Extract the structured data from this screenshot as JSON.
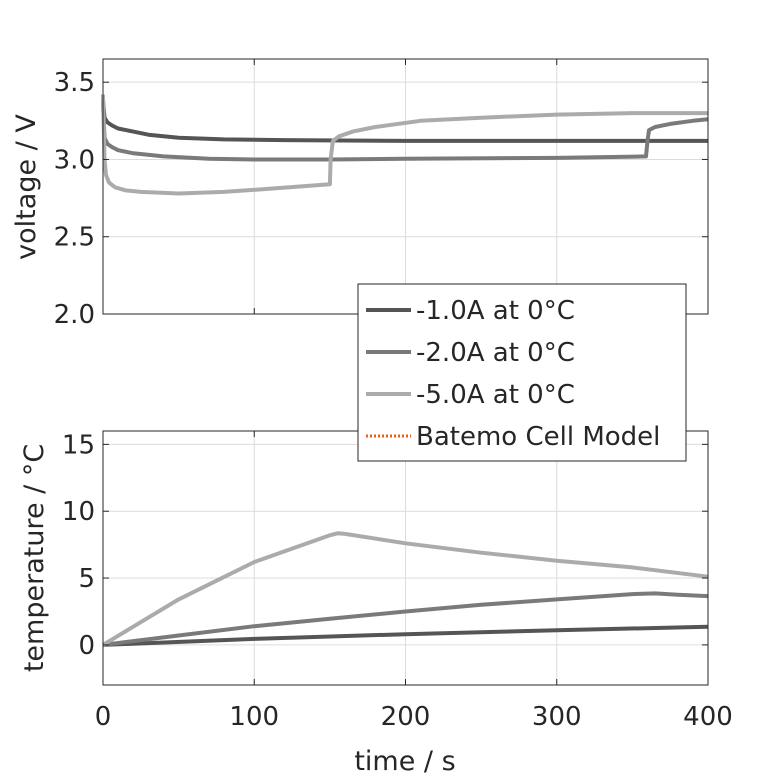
{
  "chart_data": [
    {
      "type": "line",
      "ylabel": "voltage / V",
      "xlim": [
        0,
        400
      ],
      "ylim": [
        2.0,
        3.65
      ],
      "yticks": [
        "2.0",
        "2.5",
        "3.0",
        "3.5"
      ],
      "ytick_values": [
        2.0,
        2.5,
        3.0,
        3.5
      ],
      "xticks_values": [
        0,
        100,
        200,
        300,
        400
      ],
      "grid": true,
      "series": [
        {
          "name": "-1.0A at 0°C",
          "color": "#555555",
          "x": [
            0,
            1,
            3,
            6,
            10,
            20,
            30,
            50,
            80,
            120,
            200,
            300,
            360,
            400
          ],
          "y": [
            3.38,
            3.27,
            3.24,
            3.22,
            3.2,
            3.18,
            3.16,
            3.14,
            3.13,
            3.125,
            3.12,
            3.12,
            3.12,
            3.12
          ]
        },
        {
          "name": "-2.0A at 0°C",
          "color": "#7a7a7a",
          "x": [
            0,
            1,
            3,
            6,
            10,
            20,
            40,
            70,
            100,
            150,
            200,
            300,
            359,
            360,
            361,
            365,
            375,
            390,
            400
          ],
          "y": [
            3.36,
            3.14,
            3.1,
            3.08,
            3.06,
            3.04,
            3.02,
            3.005,
            3.0,
            3.0,
            3.005,
            3.01,
            3.02,
            3.12,
            3.19,
            3.21,
            3.23,
            3.25,
            3.26
          ]
        },
        {
          "name": "-5.0A at 0°C",
          "color": "#ababab",
          "x": [
            0,
            1,
            2,
            4,
            8,
            15,
            25,
            50,
            80,
            110,
            150,
            150.5,
            152,
            156,
            165,
            180,
            210,
            250,
            300,
            350,
            400
          ],
          "y": [
            3.42,
            3.0,
            2.9,
            2.85,
            2.82,
            2.8,
            2.79,
            2.78,
            2.79,
            2.81,
            2.84,
            3.0,
            3.12,
            3.15,
            3.18,
            3.21,
            3.25,
            3.27,
            3.29,
            3.3,
            3.3
          ]
        }
      ]
    },
    {
      "type": "line",
      "xlabel": "time / s",
      "ylabel": "temperature / °C",
      "xlim": [
        0,
        400
      ],
      "ylim": [
        -3,
        16
      ],
      "xticks": [
        "0",
        "100",
        "200",
        "300",
        "400"
      ],
      "xtick_values": [
        0,
        100,
        200,
        300,
        400
      ],
      "yticks": [
        "0",
        "5",
        "10",
        "15"
      ],
      "ytick_values": [
        0,
        5,
        10,
        15
      ],
      "grid": true,
      "series": [
        {
          "name": "-1.0A at 0°C",
          "color": "#555555",
          "x": [
            0,
            100,
            200,
            300,
            400
          ],
          "y": [
            0,
            0.45,
            0.8,
            1.1,
            1.35
          ]
        },
        {
          "name": "-2.0A at 0°C",
          "color": "#7a7a7a",
          "x": [
            0,
            50,
            100,
            150,
            200,
            250,
            300,
            350,
            365,
            380,
            400
          ],
          "y": [
            0,
            0.7,
            1.4,
            1.95,
            2.5,
            3.0,
            3.4,
            3.8,
            3.85,
            3.75,
            3.65
          ]
        },
        {
          "name": "-5.0A at 0°C",
          "color": "#ababab",
          "x": [
            0,
            50,
            100,
            150,
            155,
            160,
            200,
            250,
            300,
            350,
            400
          ],
          "y": [
            0,
            3.4,
            6.2,
            8.2,
            8.35,
            8.3,
            7.6,
            6.9,
            6.3,
            5.8,
            5.1
          ]
        }
      ]
    }
  ],
  "legend": {
    "placement": "right, between panels",
    "entries": [
      {
        "label": "-1.0A at 0°C",
        "color": "#555555",
        "style": "solid"
      },
      {
        "label": "-2.0A at 0°C",
        "color": "#7a7a7a",
        "style": "solid"
      },
      {
        "label": "-5.0A at 0°C",
        "color": "#ababab",
        "style": "solid"
      },
      {
        "label": "Batemo Cell Model",
        "color": "#e8601c",
        "style": "dotted"
      }
    ]
  }
}
